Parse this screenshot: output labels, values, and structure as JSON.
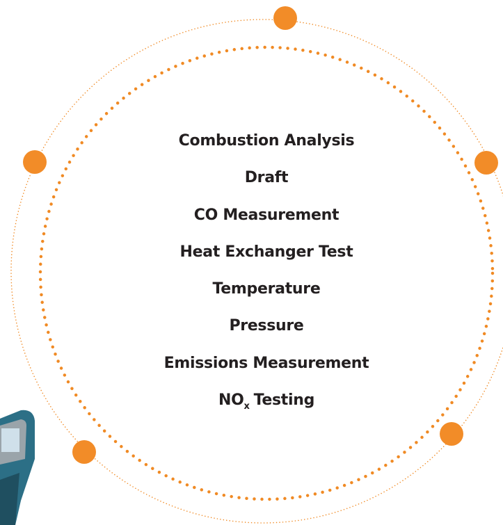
{
  "items": [
    "Combustion Analysis",
    "Draft",
    "CO Measurement",
    "Heat Exchanger Test",
    "Temperature",
    "Pressure",
    "Emissions Measurement"
  ],
  "last_item": {
    "text": "NO",
    "subscript": "x",
    "suffix": "Testing"
  }
}
